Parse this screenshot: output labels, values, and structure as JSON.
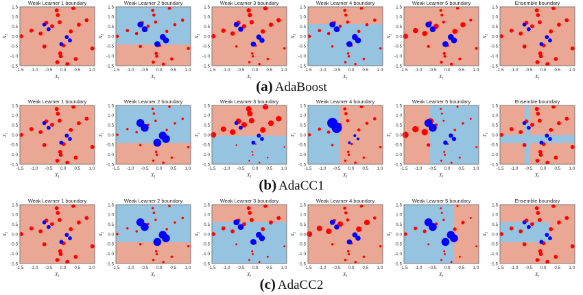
{
  "figure": {
    "colors": {
      "negative_region": "#eaa793",
      "positive_region": "#95c3e0",
      "negative_point": "#ff0000",
      "positive_point": "#0000ff",
      "axes_frame": "#7a7a7a"
    }
  },
  "chart_data": {
    "type": "scatter",
    "subtype": "decision-boundary grid",
    "x": [
      -1.45,
      -1.1,
      -0.78,
      -0.65,
      -0.58,
      -0.38,
      -0.22,
      -0.18,
      -0.12,
      -0.2,
      -0.1,
      -0.08,
      0.02,
      0.27,
      0.36,
      0.55,
      0.82,
      0.44,
      0.15,
      1.02,
      -0.65,
      -0.5,
      0.13,
      0.24,
      -0.06
    ],
    "y": [
      0.0,
      0.29,
      0.14,
      -0.52,
      0.69,
      0.51,
      1.32,
      1.08,
      0.72,
      -1.32,
      -0.87,
      -1.02,
      -0.47,
      0.25,
      1.43,
      0.59,
      0.82,
      -1.16,
      -1.42,
      -0.62,
      0.6,
      0.36,
      -0.04,
      -0.21,
      -0.4
    ],
    "labels": [
      "neg",
      "neg",
      "neg",
      "neg",
      "neg",
      "neg",
      "neg",
      "neg",
      "neg",
      "neg",
      "neg",
      "neg",
      "neg",
      "neg",
      "neg",
      "neg",
      "neg",
      "neg",
      "neg",
      "neg",
      "pos",
      "pos",
      "pos",
      "pos",
      "pos"
    ],
    "xlim": [
      -1.5,
      1.1
    ],
    "ylim": [
      -1.5,
      1.5
    ],
    "xticks": [
      "-1.5",
      "-1.0",
      "-0.5",
      "0.0",
      "0.5",
      "1.0"
    ],
    "yticks": [
      "1.5",
      "1.0",
      "0.5",
      "0.0",
      "-0.5",
      "-1.0",
      "-1.5"
    ],
    "xlabel": "X1",
    "ylabel": "X2",
    "grid": false,
    "legend": "none",
    "rows": [
      {
        "tag": "(a)",
        "method": "AdaBoost",
        "panels": [
          {
            "title": "Weak Learner 1 boundary",
            "background": "neg",
            "regions": [],
            "weights": [
              1,
              1,
              1,
              1,
              1,
              1,
              1,
              1,
              1,
              1,
              1,
              1,
              1,
              1,
              1,
              1,
              1,
              1,
              1,
              1,
              1,
              1,
              1,
              1,
              1
            ]
          },
          {
            "title": "Weak Learner 2 boundary",
            "background": "neg",
            "regions": [
              [
                -1.5,
                1.1,
                -0.42,
                1.5
              ]
            ],
            "weights": [
              0.8,
              0.8,
              0.8,
              0.8,
              0.8,
              0.8,
              0.8,
              0.8,
              0.8,
              0.8,
              0.8,
              0.8,
              0.8,
              0.8,
              0.8,
              0.8,
              0.8,
              0.8,
              0.8,
              0.8,
              1.5,
              1.5,
              1.5,
              1.5,
              1.5
            ]
          },
          {
            "title": "Weak Learner 3 boundary",
            "background": "neg",
            "regions": [],
            "weights": [
              1.1,
              1.1,
              1.1,
              0.6,
              1.1,
              1.1,
              1.1,
              1.1,
              1.1,
              0.6,
              0.6,
              0.6,
              0.6,
              1.1,
              1.1,
              1.1,
              1.1,
              0.6,
              0.6,
              0.6,
              1.3,
              1.3,
              1.3,
              1.3,
              1.3
            ]
          },
          {
            "title": "Weak Learner 4 boundary",
            "background": "pos",
            "regions_neg": [
              [
                -1.5,
                1.1,
                0.62,
                1.5
              ]
            ],
            "weights": [
              0.8,
              0.8,
              0.8,
              0.6,
              0.8,
              0.8,
              0.8,
              0.8,
              0.8,
              0.6,
              0.6,
              0.6,
              0.6,
              0.8,
              0.8,
              0.8,
              0.8,
              0.6,
              0.6,
              0.6,
              1.5,
              1.5,
              1.5,
              1.5,
              1.5
            ]
          },
          {
            "title": "Weak Learner 5 boundary",
            "background": "neg",
            "regions": [],
            "weights": [
              1.3,
              1.3,
              1.3,
              0.7,
              0.9,
              1.3,
              0.7,
              0.7,
              0.7,
              0.7,
              0.7,
              0.7,
              0.7,
              1.3,
              0.7,
              1.3,
              0.7,
              0.7,
              0.7,
              0.7,
              1.5,
              1.5,
              1.5,
              1.5,
              1.5
            ]
          },
          {
            "title": "Ensemble boundary",
            "background": "neg",
            "regions": [],
            "weights": [
              1,
              1,
              1,
              1,
              1,
              1,
              1,
              1,
              1,
              1,
              1,
              1,
              1,
              1,
              1,
              1,
              1,
              1,
              1,
              1,
              1,
              1,
              1,
              1,
              1
            ]
          }
        ]
      },
      {
        "tag": "(b)",
        "method": "AdaCC1",
        "panels": [
          {
            "title": "Weak Learner 1 boundary",
            "background": "neg",
            "regions": [],
            "weights": [
              1,
              1,
              1,
              1,
              1,
              1,
              1,
              1,
              1,
              1,
              1,
              1,
              1,
              1,
              1,
              1,
              1,
              1,
              1,
              1,
              1,
              1,
              1,
              1,
              1
            ]
          },
          {
            "title": "Weak Learner 2 boundary",
            "background": "neg",
            "regions": [
              [
                -1.5,
                1.1,
                -0.42,
                1.5
              ]
            ],
            "weights": [
              0.6,
              0.6,
              0.6,
              0.6,
              0.6,
              0.6,
              0.6,
              0.6,
              0.6,
              0.6,
              0.6,
              0.6,
              0.6,
              0.6,
              0.6,
              0.6,
              0.6,
              0.6,
              0.6,
              0.6,
              2.0,
              2.0,
              2.0,
              2.0,
              2.0
            ]
          },
          {
            "title": "Weak Learner 3 boundary",
            "background": "pos",
            "regions_neg": [
              [
                -1.5,
                1.1,
                -0.05,
                1.5
              ]
            ],
            "weights": [
              1.4,
              1.4,
              1.4,
              0.4,
              1.4,
              1.4,
              1.4,
              1.4,
              1.4,
              0.4,
              0.4,
              0.4,
              0.4,
              1.4,
              1.4,
              1.4,
              1.4,
              0.4,
              0.4,
              0.4,
              1.0,
              1.0,
              1.0,
              1.0,
              1.0
            ]
          },
          {
            "title": "Weak Learner 4 boundary",
            "background": "neg",
            "regions": [
              [
                -1.5,
                -0.42,
                -1.5,
                1.5
              ]
            ],
            "weights": [
              0.8,
              0.8,
              0.8,
              0.6,
              0.8,
              0.8,
              0.8,
              0.8,
              0.8,
              0.6,
              0.6,
              0.6,
              0.6,
              0.8,
              0.8,
              0.8,
              0.8,
              0.6,
              0.6,
              0.6,
              2.6,
              2.6,
              0.7,
              0.7,
              0.7
            ]
          },
          {
            "title": "Weak Learner 5 boundary",
            "background": "pos",
            "regions_neg": [
              [
                -1.5,
                -0.6,
                -1.5,
                1.5
              ]
            ],
            "weights": [
              1.6,
              1.6,
              1.6,
              0.9,
              1.6,
              0.7,
              0.5,
              0.5,
              0.5,
              0.5,
              0.5,
              0.5,
              0.5,
              0.6,
              0.5,
              0.6,
              0.5,
              0.5,
              0.5,
              0.5,
              2.0,
              2.0,
              1.1,
              1.1,
              1.1
            ]
          },
          {
            "title": "Ensemble boundary",
            "background": "neg",
            "regions": [
              [
                -0.65,
                -0.45,
                -1.5,
                1.5
              ],
              [
                -1.5,
                1.1,
                -0.42,
                0.0
              ]
            ],
            "weights": [
              1,
              1,
              1,
              1,
              1,
              1,
              1,
              1,
              1,
              1,
              1,
              1,
              1,
              1,
              1,
              1,
              1,
              1,
              1,
              1,
              1,
              1,
              1,
              1,
              1
            ]
          }
        ]
      },
      {
        "tag": "(c)",
        "method": "AdaCC2",
        "panels": [
          {
            "title": "Weak Learner 1 boundary",
            "background": "neg",
            "regions": [],
            "weights": [
              1,
              1,
              1,
              1,
              1,
              1,
              1,
              1,
              1,
              1,
              1,
              1,
              1,
              1,
              1,
              1,
              1,
              1,
              1,
              1,
              1,
              1,
              1,
              1,
              1
            ]
          },
          {
            "title": "Weak Learner 2 boundary",
            "background": "neg",
            "regions": [
              [
                -1.5,
                1.1,
                -0.42,
                1.5
              ]
            ],
            "weights": [
              0.6,
              0.6,
              0.6,
              0.6,
              0.6,
              0.6,
              0.6,
              0.6,
              0.6,
              0.6,
              0.6,
              0.6,
              0.6,
              0.6,
              0.6,
              0.6,
              0.6,
              0.6,
              0.6,
              0.6,
              2.0,
              2.0,
              2.0,
              2.0,
              2.0
            ]
          },
          {
            "title": "Weak Learner 3 boundary",
            "background": "pos",
            "regions_neg": [
              [
                -1.5,
                1.1,
                0.62,
                1.5
              ]
            ],
            "weights": [
              1.0,
              1.0,
              1.0,
              0.5,
              1.0,
              1.0,
              1.0,
              1.0,
              1.0,
              0.5,
              0.5,
              0.5,
              0.5,
              1.0,
              1.0,
              1.0,
              1.0,
              0.5,
              0.5,
              0.5,
              1.5,
              1.5,
              1.5,
              1.5,
              1.5
            ]
          },
          {
            "title": "Weak Learner 4 boundary",
            "background": "neg",
            "regions": [],
            "weights": [
              1.4,
              1.4,
              1.4,
              0.6,
              0.8,
              1.4,
              0.8,
              0.8,
              0.8,
              0.6,
              0.6,
              0.6,
              0.6,
              1.4,
              0.8,
              1.4,
              0.8,
              0.6,
              0.6,
              0.6,
              1.3,
              1.3,
              1.3,
              1.3,
              1.3
            ]
          },
          {
            "title": "Weak Learner 5 boundary",
            "background": "neg",
            "regions": [
              [
                -1.5,
                0.24,
                -1.5,
                1.5
              ]
            ],
            "weights": [
              0.9,
              0.9,
              0.9,
              0.5,
              0.6,
              0.8,
              0.5,
              0.5,
              0.6,
              0.5,
              0.5,
              0.5,
              0.5,
              0.9,
              0.5,
              0.9,
              0.5,
              0.5,
              0.5,
              0.5,
              2.0,
              2.0,
              2.0,
              2.0,
              2.0
            ]
          },
          {
            "title": "Ensemble boundary",
            "background": "neg",
            "regions": [
              [
                -1.5,
                0.24,
                -0.42,
                0.62
              ]
            ],
            "weights": [
              1,
              1,
              1,
              1,
              1,
              1,
              1,
              1,
              1,
              1,
              1,
              1,
              1,
              1,
              1,
              1,
              1,
              1,
              1,
              1,
              1,
              1,
              1,
              1,
              1
            ]
          }
        ]
      }
    ]
  }
}
